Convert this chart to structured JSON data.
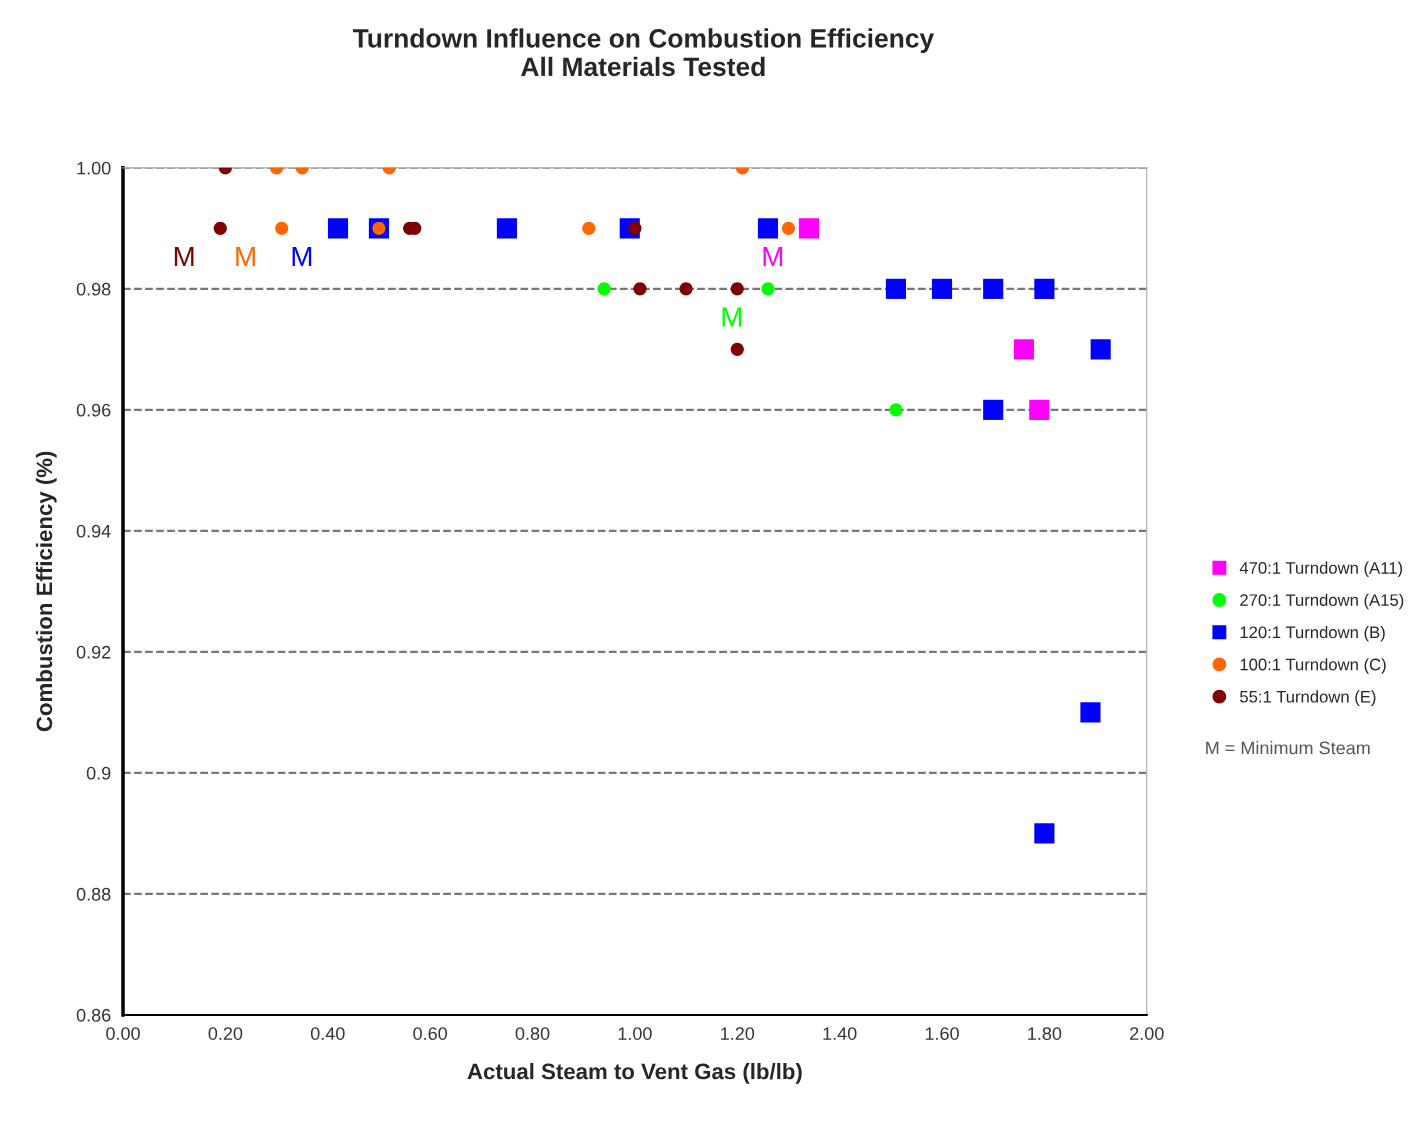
{
  "chart_data": {
    "type": "scatter",
    "title": "Turndown Influence on Combustion Efficiency\nAll Materials Tested",
    "xlabel": "Actual Steam to Vent Gas (lb/lb)",
    "ylabel": "Combustion Efficiency (%)",
    "series": [
      {
        "name": "470:1 Turndown (A11)",
        "color": "#ff00ff",
        "marker": "square",
        "x": [
          1.34,
          1.76,
          1.79
        ],
        "values": [
          0.99,
          0.97,
          0.96
        ]
      },
      {
        "name": "270:1 Turndown (A15)",
        "color": "#00ff00",
        "marker": "circle",
        "x": [
          0.94,
          1.26,
          1.51
        ],
        "values": [
          0.98,
          0.98,
          0.96
        ]
      },
      {
        "name": "120:1 Turndown (B)",
        "color": "#0000ff",
        "marker": "square",
        "x": [
          0.42,
          0.5,
          0.75,
          0.99,
          1.26,
          1.51,
          1.6,
          1.7,
          1.8,
          1.91,
          1.7,
          1.89,
          1.8
        ],
        "values": [
          0.99,
          0.99,
          0.99,
          0.99,
          0.99,
          0.98,
          0.98,
          0.98,
          0.98,
          0.97,
          0.96,
          0.91,
          0.89
        ]
      },
      {
        "name": "100:1 Turndown (C)",
        "color": "#ff6600",
        "marker": "circle",
        "x": [
          0.3,
          0.35,
          0.52,
          1.21,
          0.31,
          0.5,
          0.91,
          1.3
        ],
        "values": [
          1.0,
          1.0,
          1.0,
          1.0,
          0.99,
          0.99,
          0.99,
          0.99
        ]
      },
      {
        "name": "55:1 Turndown (E)",
        "color": "#800000",
        "marker": "circle",
        "x": [
          0.2,
          0.19,
          0.56,
          0.57,
          1.0,
          1.01,
          1.1,
          1.2,
          1.2
        ],
        "values": [
          1.0,
          0.99,
          0.99,
          0.99,
          0.99,
          0.98,
          0.98,
          0.98,
          0.97
        ]
      }
    ],
    "annotations": [
      {
        "text": "M",
        "x": 0.19,
        "y": 0.99
      },
      {
        "text": "M",
        "x": 0.31,
        "y": 0.99
      },
      {
        "text": "M",
        "x": 0.42,
        "y": 0.99
      },
      {
        "text": "M",
        "x": 1.34,
        "y": 0.99
      },
      {
        "text": "M",
        "x": 1.26,
        "y": 0.98
      },
      "M = Minimum Steam"
    ],
    "xlim": [
      0,
      2
    ],
    "xticks": [
      {
        "value": 0,
        "label": "0.00"
      },
      {
        "value": 0.2,
        "label": "0.20"
      },
      {
        "value": 0.4,
        "label": "0.40"
      },
      {
        "value": 0.6,
        "label": "0.60"
      },
      {
        "value": 0.8,
        "label": "0.80"
      },
      {
        "value": 1.0,
        "label": "1.00"
      },
      {
        "value": 1.2,
        "label": "1.20"
      },
      {
        "value": 1.4,
        "label": "1.40"
      },
      {
        "value": 1.6,
        "label": "1.60"
      },
      {
        "value": 1.8,
        "label": "1.80"
      },
      {
        "value": 2.0,
        "label": "2.00"
      }
    ],
    "ylim": [
      0.86,
      1.0
    ],
    "yticks": [
      0.86,
      0.88,
      0.9,
      0.92,
      0.94,
      0.96,
      0.98,
      {
        "value": 1.0,
        "label": "1.00"
      }
    ],
    "grid": "y",
    "legend": "right"
  }
}
